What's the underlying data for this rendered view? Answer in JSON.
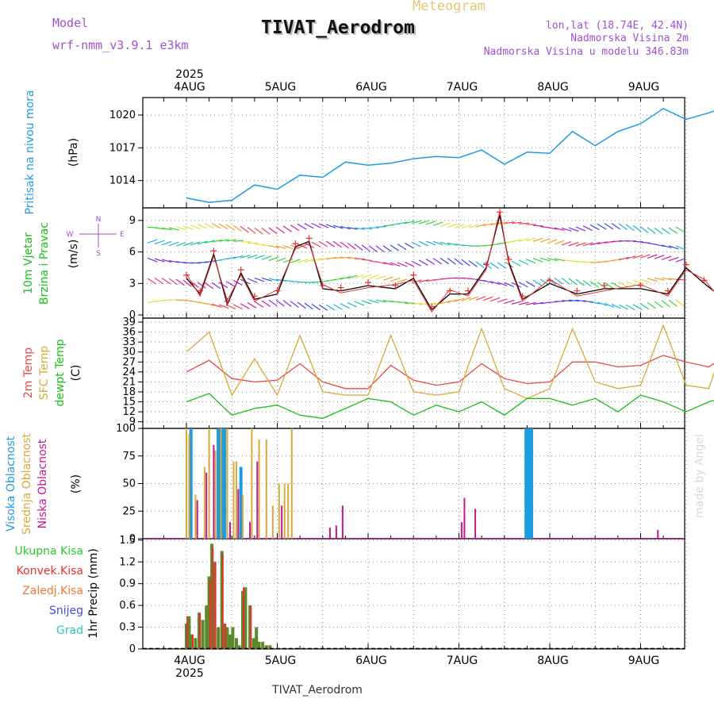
{
  "header": {
    "model_label": "Model",
    "model_name": "wrf-nmm_v3.9.1 e3km",
    "title": "TIVAT_Aerodrom",
    "meteogram_label": "Meteogram",
    "lonlat": "lon,lat (18.74E, 42.4N)",
    "elevation": "Nadmorska Visina 2m",
    "model_elevation": "Nadmorska Visina u modelu 346.83m",
    "watermark": "made by Angel",
    "footer_station": "TIVAT_Aerodrom"
  },
  "colors": {
    "pressure": "#1e9be0",
    "wind_black": "#000000",
    "wind_red": "#e83030",
    "temp2m": "#e84848",
    "sfc": "#d8a838",
    "dewpt": "#18c018",
    "cloud_high": "#1e9be0",
    "cloud_mid": "#d8a838",
    "cloud_low": "#c01890",
    "precip_total": "#5a8a2a",
    "precip_conv": "#e83030",
    "grid": "#888888"
  },
  "chart_data": [
    {
      "type": "line",
      "panel": "pressure",
      "ylabel": "(hPa)",
      "side_label": "Pritisak na nivou mora",
      "yticks": [
        1014,
        1017,
        1020
      ],
      "ylim": [
        1011.5,
        1021.6
      ],
      "x_days": [
        0,
        0.25,
        0.5,
        0.75,
        1,
        1.25,
        1.5,
        1.75,
        2,
        2.25,
        2.5,
        2.75,
        3,
        3.25,
        3.5,
        3.75,
        4,
        4.25,
        4.5,
        4.75,
        5,
        5.25,
        5.5,
        5.75,
        6
      ],
      "values": [
        1012.4,
        1012.0,
        1012.2,
        1013.6,
        1013.2,
        1014.5,
        1014.3,
        1015.7,
        1015.4,
        1015.6,
        1016.0,
        1016.2,
        1016.1,
        1016.8,
        1015.5,
        1016.6,
        1016.5,
        1018.5,
        1017.2,
        1018.5,
        1019.2,
        1020.6,
        1019.6,
        1020.2,
        1021.0
      ]
    },
    {
      "type": "line",
      "panel": "wind",
      "ylabel": "(m/s)",
      "side_label_1": "10m Vjetar",
      "side_label_2": "Brzina i Pravac",
      "compass": {
        "north": "N",
        "south": "S",
        "west": "W",
        "east": "E"
      },
      "yticks": [
        0,
        3,
        6,
        9
      ],
      "ylim": [
        -0.3,
        10.2
      ],
      "x_days": [
        0,
        0.15,
        0.3,
        0.45,
        0.6,
        0.75,
        1,
        1.2,
        1.35,
        1.5,
        1.7,
        2,
        2.3,
        2.5,
        2.7,
        2.9,
        3.1,
        3.3,
        3.45,
        3.55,
        3.7,
        4,
        4.3,
        4.6,
        5,
        5.3,
        5.5,
        5.7,
        5.85,
        6
      ],
      "values": [
        3.5,
        2.0,
        5.8,
        1.0,
        4.0,
        1.5,
        2.0,
        6.5,
        7.0,
        2.5,
        2.3,
        2.8,
        2.5,
        3.5,
        0.5,
        2.0,
        2.0,
        4.5,
        9.5,
        5.0,
        1.5,
        3.0,
        2.0,
        2.5,
        2.5,
        2.0,
        4.5,
        3.0,
        2.0,
        3.0
      ],
      "barb_rows": [
        1.2,
        3.3,
        5.2,
        6.8,
        8.5
      ]
    },
    {
      "type": "line",
      "panel": "temperature",
      "ylabel": "(C)",
      "side_label_1": "2m Temp",
      "side_label_2": "SFC Temp",
      "side_label_3": "dewpt Temp",
      "yticks": [
        9,
        12,
        15,
        18,
        21,
        24,
        27,
        30,
        33,
        36,
        39
      ],
      "ylim": [
        7.0,
        40.2
      ],
      "series": [
        {
          "name": "2m Temp",
          "x_days": [
            0,
            0.25,
            0.5,
            0.75,
            1,
            1.25,
            1.5,
            1.75,
            2,
            2.25,
            2.5,
            2.75,
            3,
            3.25,
            3.5,
            3.75,
            4,
            4.25,
            4.5,
            4.75,
            5,
            5.25,
            5.5,
            5.75,
            6
          ],
          "values": [
            24,
            27.5,
            22,
            21,
            21.5,
            26.5,
            21,
            19,
            19,
            26,
            21.5,
            20,
            21,
            26.5,
            22,
            20.5,
            21,
            27,
            27,
            25.5,
            26,
            29,
            27,
            25.5,
            30
          ]
        },
        {
          "name": "SFC Temp",
          "x_days": [
            0,
            0.25,
            0.5,
            0.75,
            1,
            1.25,
            1.5,
            1.75,
            2,
            2.25,
            2.5,
            2.75,
            3,
            3.25,
            3.5,
            3.75,
            4,
            4.25,
            4.5,
            4.75,
            5,
            5.25,
            5.5,
            5.75,
            6
          ],
          "values": [
            30,
            36,
            17,
            28,
            17,
            35,
            18,
            17,
            17,
            35,
            18,
            17,
            18,
            37,
            19,
            16,
            19,
            37,
            21,
            19,
            20,
            38,
            20,
            19,
            39
          ]
        },
        {
          "name": "dewpt Temp",
          "x_days": [
            0,
            0.25,
            0.5,
            0.75,
            1,
            1.25,
            1.5,
            1.75,
            2,
            2.25,
            2.5,
            2.75,
            3,
            3.25,
            3.5,
            3.75,
            4,
            4.25,
            4.5,
            4.75,
            5,
            5.25,
            5.5,
            5.75,
            6
          ],
          "values": [
            15,
            17.5,
            11,
            13,
            14,
            11,
            10,
            13,
            16,
            15,
            11,
            14,
            12,
            15,
            11,
            16,
            16,
            14,
            16,
            12,
            17,
            15,
            12,
            15,
            17
          ]
        }
      ]
    },
    {
      "type": "bar",
      "panel": "clouds",
      "ylabel": "(%)",
      "side_label_1": "Visoka Oblacnost",
      "side_label_2": "Srednja Oblacnost",
      "side_label_3": "Niska Oblacnost",
      "yticks": [
        0,
        25,
        50,
        75,
        100
      ],
      "ylim": [
        0,
        100
      ],
      "series": [
        {
          "name": "Visoka Oblacnost",
          "x_days": [
            0.05,
            0.35,
            0.37,
            0.39,
            0.42,
            0.6,
            3.74,
            3.77,
            3.8
          ],
          "values": [
            100,
            100,
            100,
            100,
            100,
            65,
            100,
            100,
            100
          ]
        },
        {
          "name": "Srednja Oblacnost",
          "x_days": [
            0.0,
            0.03,
            0.1,
            0.2,
            0.25,
            0.32,
            0.38,
            0.45,
            0.52,
            0.55,
            0.62,
            0.72,
            0.8,
            0.88,
            0.95,
            1.02,
            1.08,
            1.12,
            1.16
          ],
          "values": [
            100,
            95,
            40,
            65,
            100,
            80,
            100,
            100,
            70,
            70,
            40,
            100,
            90,
            90,
            30,
            50,
            50,
            50,
            100
          ]
        },
        {
          "name": "Niska Oblacnost",
          "x_days": [
            0.12,
            0.22,
            0.3,
            0.48,
            0.57,
            0.7,
            0.78,
            1.05,
            1.58,
            1.65,
            1.72,
            3.03,
            3.06,
            3.18,
            5.19
          ],
          "values": [
            35,
            60,
            85,
            15,
            45,
            15,
            70,
            30,
            10,
            12,
            30,
            15,
            37,
            27,
            8
          ]
        }
      ]
    },
    {
      "type": "bar",
      "panel": "precipitation",
      "ylabel": "1hr Precip (mm)",
      "legend": [
        "Ukupna Kisa",
        "Konvek.Kisa",
        "Zaledj.Kisa",
        "Snijeg",
        "Grad"
      ],
      "legend_colors": [
        "#2ec82e",
        "#e83030",
        "#f07830",
        "#4848e8",
        "#30c8b0"
      ],
      "yticks": [
        0,
        0.3,
        0.6,
        0.9,
        1.2,
        1.5
      ],
      "ylim": [
        0,
        1.52
      ],
      "series": [
        {
          "name": "Ukupna Kisa",
          "x_days": [
            0.0,
            0.03,
            0.06,
            0.1,
            0.14,
            0.18,
            0.22,
            0.25,
            0.28,
            0.31,
            0.35,
            0.39,
            0.42,
            0.45,
            0.48,
            0.51,
            0.55,
            0.58,
            0.62,
            0.65,
            0.7,
            0.74,
            0.77,
            0.8,
            0.84,
            0.88,
            0.92
          ],
          "values": [
            0.35,
            0.45,
            0.2,
            0.15,
            0.5,
            0.4,
            0.6,
            1.0,
            1.45,
            1.2,
            0.3,
            1.35,
            0.35,
            0.3,
            0.2,
            0.3,
            0.15,
            0.05,
            0.8,
            0.85,
            0.6,
            0.15,
            0.3,
            0.1,
            0.1,
            0.05,
            0.05
          ]
        },
        {
          "name": "Konvek.Kisa",
          "x_days": [
            0.01,
            0.07,
            0.15,
            0.26,
            0.29,
            0.32,
            0.4,
            0.43,
            0.63,
            0.71
          ],
          "values": [
            0.45,
            0.2,
            0.5,
            0.95,
            1.4,
            1.2,
            1.3,
            0.35,
            0.85,
            0.6
          ]
        }
      ]
    }
  ],
  "time_axis": {
    "year": "2025",
    "day_labels": [
      "4AUG",
      "5AUG",
      "6AUG",
      "7AUG",
      "8AUG",
      "9AUG"
    ]
  }
}
